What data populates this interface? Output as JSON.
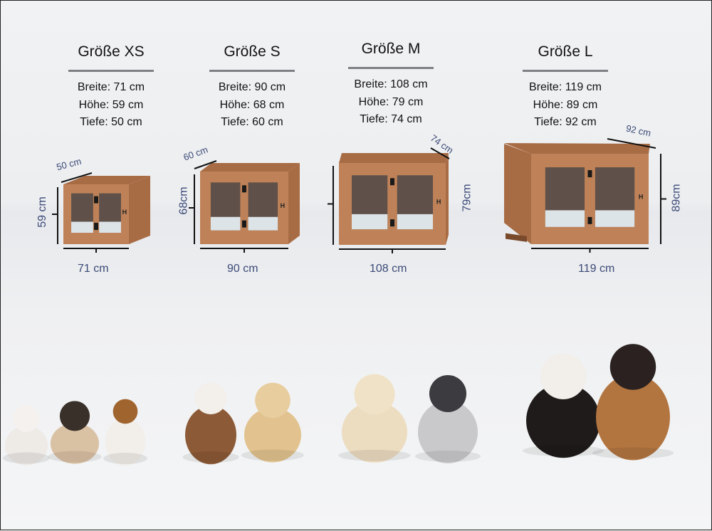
{
  "sizes": [
    {
      "title": "Größe XS",
      "width": "Breite: 71 cm",
      "height": "Höhe: 59 cm",
      "depth": "Tiefe: 50 cm",
      "dim_w": "71 cm",
      "dim_h": "59 cm",
      "dim_d": "50 cm"
    },
    {
      "title": "Größe S",
      "width": "Breite: 90 cm",
      "height": "Höhe: 68 cm",
      "depth": "Tiefe: 60 cm",
      "dim_w": "90 cm",
      "dim_h": "68cm",
      "dim_d": "60 cm"
    },
    {
      "title": "Größe M",
      "width": "Breite: 108 cm",
      "height": "Höhe: 79 cm",
      "depth": "Tiefe: 74 cm",
      "dim_w": "108 cm",
      "dim_h": "79cm",
      "dim_d": "74 cm"
    },
    {
      "title": "Größe L",
      "width": "Breite: 119 cm",
      "height": "Höhe: 89 cm",
      "depth": "Tiefe: 92 cm",
      "dim_w": "119 cm",
      "dim_h": "89cm",
      "dim_d": "92 cm"
    }
  ],
  "colors": {
    "crate": "#bf8258",
    "crate_side": "#a86c45",
    "opening": "#5f5049",
    "floor": "#dde4e8",
    "dimension": "#3c4a78"
  },
  "dogs": [
    "maltese",
    "pug",
    "jack-russell-terrier",
    "pit-bull",
    "labrador",
    "golden-retriever",
    "husky",
    "bernese-mountain-dog",
    "german-shepherd"
  ]
}
